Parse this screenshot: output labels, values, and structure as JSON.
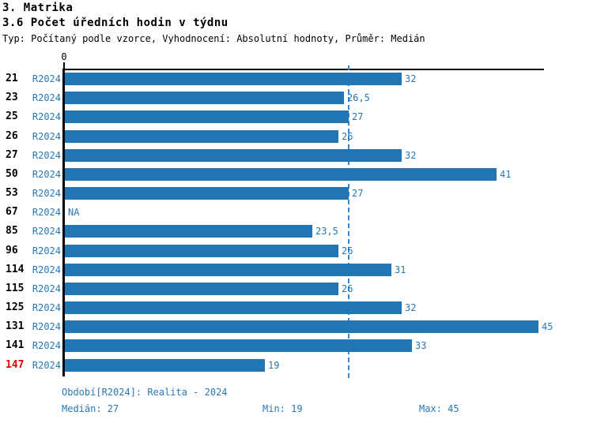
{
  "header": {
    "title": "3. Matrika",
    "subtitle": "3.6 Počet úředních hodin v týdnu",
    "meta": "Typ: Počítaný podle vzorce, Vyhodnocení: Absolutní hodnoty, Průměr: Medián"
  },
  "chart_data": {
    "type": "bar",
    "orientation": "horizontal",
    "title": "3.6 Počet úředních hodin v týdnu",
    "x_origin_label": "0",
    "xlim": [
      0,
      45
    ],
    "grid": false,
    "series_name": "R2024",
    "categories": [
      "21",
      "23",
      "25",
      "26",
      "27",
      "50",
      "53",
      "67",
      "85",
      "96",
      "114",
      "115",
      "125",
      "131",
      "141",
      "147"
    ],
    "series_labels": [
      "R2024",
      "R2024",
      "R2024",
      "R2024",
      "R2024",
      "R2024",
      "R2024",
      "R2024",
      "R2024",
      "R2024",
      "R2024",
      "R2024",
      "R2024",
      "R2024",
      "R2024",
      "R2024"
    ],
    "values": [
      32,
      26.5,
      27,
      26,
      32,
      41,
      27,
      null,
      23.5,
      26,
      31,
      26,
      32,
      45,
      33,
      19
    ],
    "value_labels": [
      "32",
      "26,5",
      "27",
      "26",
      "32",
      "41",
      "27",
      "NA",
      "23,5",
      "26",
      "31",
      "26",
      "32",
      "45",
      "33",
      "19"
    ],
    "highlighted_category": "147",
    "median_line_value": 27
  },
  "footer": {
    "period_label": "Období[R2024]: Realita - 2024",
    "median_label": "Medián: 27",
    "min_label": "Min: 19",
    "max_label": "Max: 45"
  },
  "colors": {
    "bar": "#2176b5",
    "blue_text": "#2878b5",
    "highlight_red": "#e60000",
    "median_line": "#3a87c8",
    "text": "#000000"
  }
}
